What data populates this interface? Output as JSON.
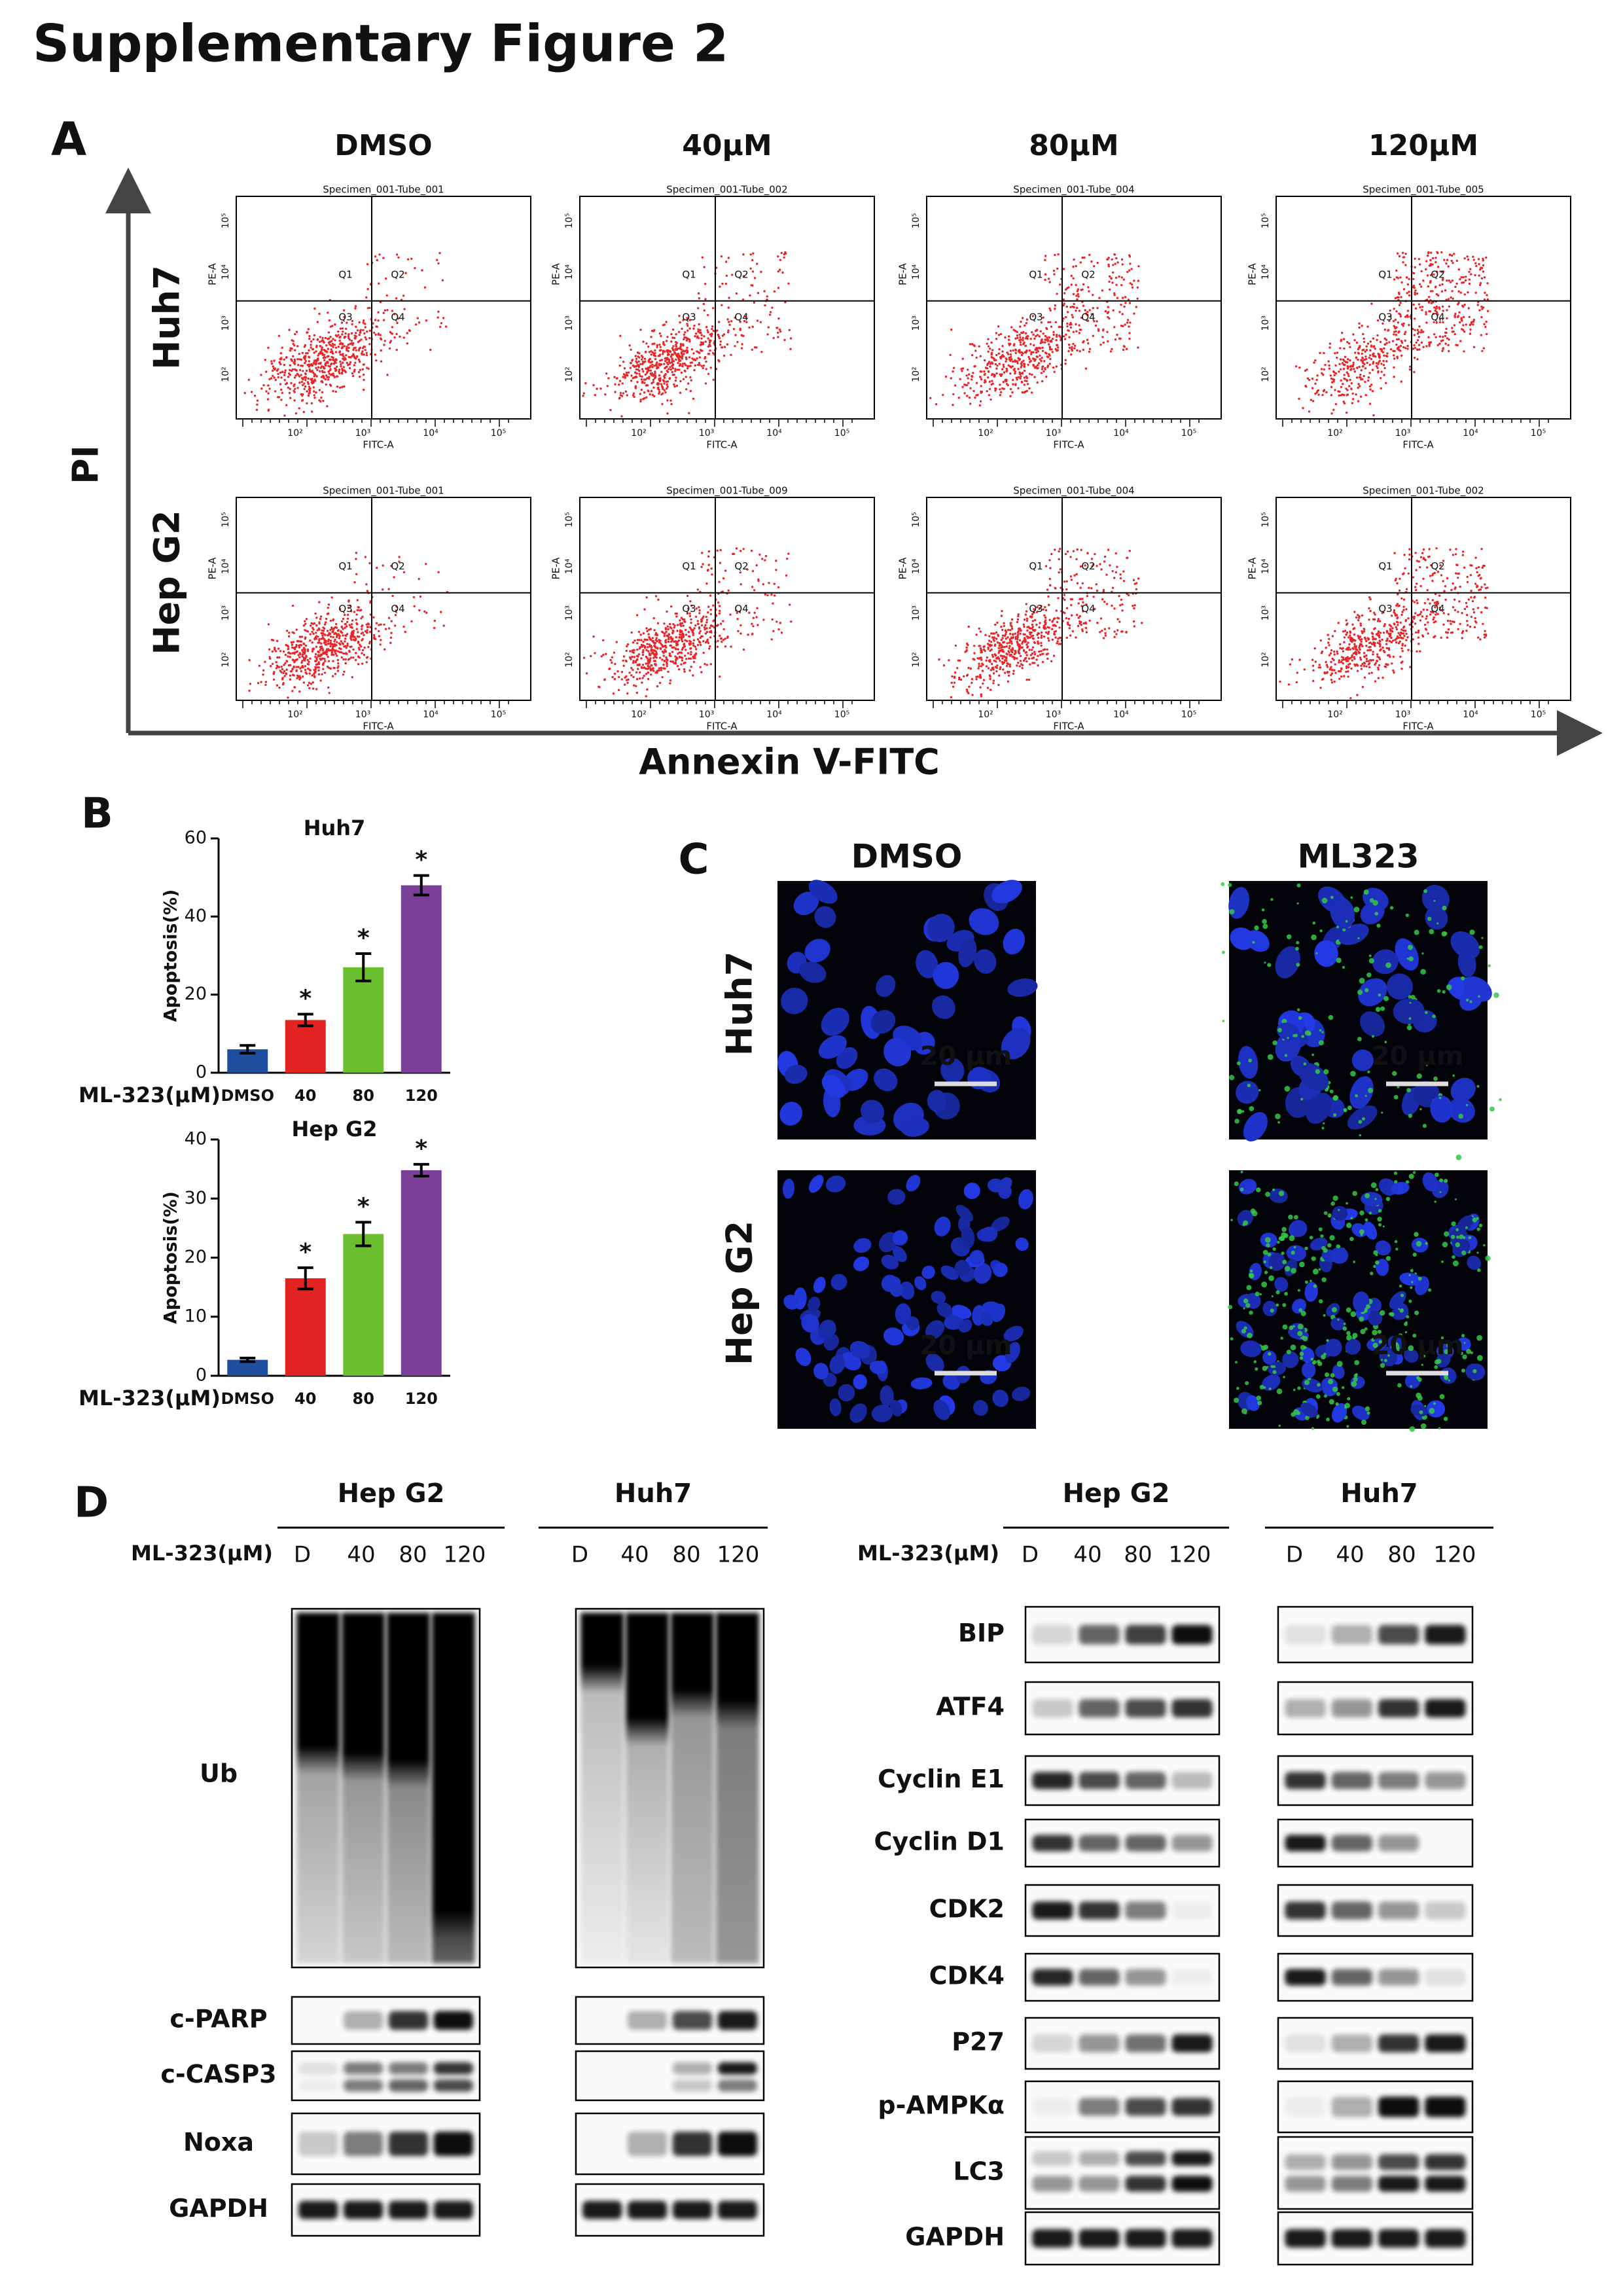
{
  "title": "Supplementary Figure 2",
  "panel_a": {
    "label": "A",
    "conditions": [
      "DMSO",
      "40μM",
      "80μM",
      "120μM"
    ],
    "cell_lines": [
      "Huh7",
      "Hep G2"
    ],
    "y_axis_label": "PI",
    "x_axis_label": "Annexin V-FITC",
    "specimens": [
      [
        "Specimen_001-Tube_001",
        "Specimen_001-Tube_002",
        "Specimen_001-Tube_004",
        "Specimen_001-Tube_005"
      ],
      [
        "Specimen_001-Tube_001",
        "Specimen_001-Tube_009",
        "Specimen_001-Tube_004",
        "Specimen_001-Tube_002"
      ]
    ],
    "quadrants": [
      "Q1",
      "Q2",
      "Q3",
      "Q4"
    ],
    "plot_x_label": "FITC-A",
    "plot_y_label": "PE-A",
    "plot_ticks": [
      "10²",
      "10³",
      "10⁴",
      "10⁵"
    ]
  },
  "panel_b": {
    "label": "B",
    "charts": [
      {
        "type": "bar",
        "title": "Huh7",
        "y_label": "Apoptosis(%)",
        "x_label": "ML-323(μM)",
        "categories": [
          "DMSO",
          "40",
          "80",
          "120"
        ],
        "values": [
          6,
          13.5,
          27,
          48
        ],
        "errors": [
          1,
          1.5,
          3.5,
          2.5
        ],
        "significance": [
          null,
          "*",
          "*",
          "*"
        ],
        "colors": [
          "#1f4e9c",
          "#e32222",
          "#6bbf2f",
          "#7b3f98"
        ],
        "ylim": [
          0,
          60
        ],
        "yticks": [
          0,
          20,
          40,
          60
        ]
      },
      {
        "type": "bar",
        "title": "Hep G2",
        "y_label": "Apoptosis(%)",
        "x_label": "ML-323(μM)",
        "categories": [
          "DMSO",
          "40",
          "80",
          "120"
        ],
        "values": [
          2.7,
          16.5,
          24,
          34.8
        ],
        "errors": [
          0.3,
          1.8,
          2,
          1
        ],
        "significance": [
          null,
          "*",
          "*",
          "*"
        ],
        "colors": [
          "#1f4e9c",
          "#e32222",
          "#6bbf2f",
          "#7b3f98"
        ],
        "ylim": [
          0,
          40
        ],
        "yticks": [
          0,
          10,
          20,
          30,
          40
        ]
      }
    ]
  },
  "panel_c": {
    "label": "C",
    "conditions": [
      "DMSO",
      "ML323"
    ],
    "cell_lines": [
      "Huh7",
      "Hep G2"
    ],
    "scale_bar": "20 μm"
  },
  "panel_d": {
    "label": "D",
    "treatment_label": "ML-323(μM)",
    "lanes": [
      "D",
      "40",
      "80",
      "120"
    ],
    "left": {
      "cell_lines": [
        "Hep G2",
        "Huh7"
      ],
      "proteins": [
        "Ub",
        "c-PARP",
        "c-CASP3",
        "Noxa",
        "GAPDH"
      ]
    },
    "right": {
      "cell_lines": [
        "Hep G2",
        "Huh7"
      ],
      "proteins": [
        "BIP",
        "ATF4",
        "Cyclin E1",
        "Cyclin D1",
        "CDK2",
        "CDK4",
        "P27",
        "p-AMPKα",
        "LC3",
        "GAPDH"
      ]
    }
  }
}
